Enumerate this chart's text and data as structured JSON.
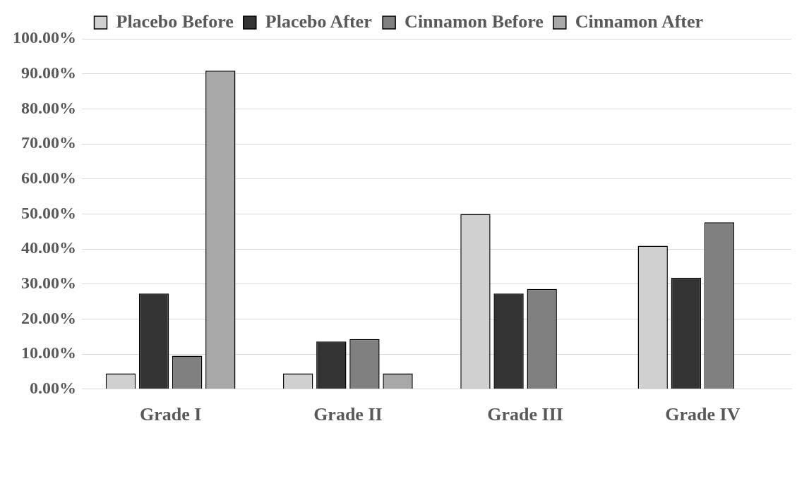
{
  "chart_data": {
    "type": "bar",
    "categories": [
      "Grade I",
      "Grade II",
      "Grade III",
      "Grade IV"
    ],
    "series": [
      {
        "name": "Placebo Before",
        "color": "#d0d0d0",
        "values": [
          4.5,
          4.5,
          50,
          40.9
        ]
      },
      {
        "name": "Placebo After",
        "color": "#333333",
        "values": [
          27.3,
          13.6,
          27.3,
          31.8
        ]
      },
      {
        "name": "Cinnamon Before",
        "color": "#808080",
        "values": [
          9.5,
          14.3,
          28.6,
          47.6
        ]
      },
      {
        "name": "Cinnamon After",
        "color": "#a8a8a8",
        "values": [
          90.9,
          4.5,
          0,
          0
        ]
      }
    ],
    "ylim": [
      0,
      100
    ],
    "yticks": [
      {
        "value": 0,
        "label": "0.00%"
      },
      {
        "value": 10,
        "label": "10.00%"
      },
      {
        "value": 20,
        "label": "20.00%"
      },
      {
        "value": 30,
        "label": "30.00%"
      },
      {
        "value": 40,
        "label": "40.00%"
      },
      {
        "value": 50,
        "label": "50.00%"
      },
      {
        "value": 60,
        "label": "60.00%"
      },
      {
        "value": 70,
        "label": "70.00%"
      },
      {
        "value": 80,
        "label": "80.00%"
      },
      {
        "value": 90,
        "label": "90.00%"
      },
      {
        "value": 100,
        "label": "100.00%"
      }
    ],
    "grid": "y",
    "legend": "top"
  }
}
